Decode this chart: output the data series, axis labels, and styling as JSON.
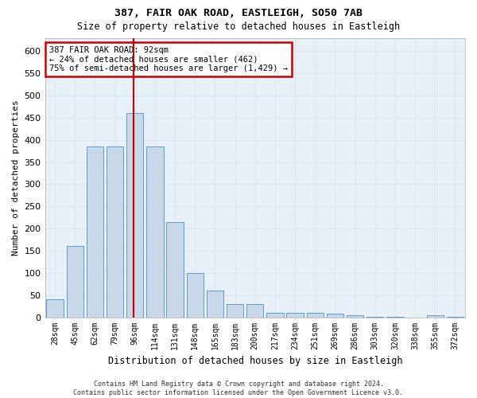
{
  "title1": "387, FAIR OAK ROAD, EASTLEIGH, SO50 7AB",
  "title2": "Size of property relative to detached houses in Eastleigh",
  "xlabel": "Distribution of detached houses by size in Eastleigh",
  "ylabel": "Number of detached properties",
  "categories": [
    "28sqm",
    "45sqm",
    "62sqm",
    "79sqm",
    "96sqm",
    "114sqm",
    "131sqm",
    "148sqm",
    "165sqm",
    "183sqm",
    "200sqm",
    "217sqm",
    "234sqm",
    "251sqm",
    "269sqm",
    "286sqm",
    "303sqm",
    "320sqm",
    "338sqm",
    "355sqm",
    "372sqm"
  ],
  "values": [
    40,
    160,
    385,
    385,
    460,
    385,
    215,
    100,
    60,
    30,
    30,
    10,
    10,
    10,
    8,
    5,
    1,
    1,
    0,
    5,
    1
  ],
  "bar_color": "#c8d8e8",
  "bar_edge_color": "#5b9bd5",
  "grid_color": "#dce6f0",
  "background_color": "#e8f0f8",
  "vline_color": "#cc0000",
  "vline_x": 3.93,
  "annotation_text": "387 FAIR OAK ROAD: 92sqm\n← 24% of detached houses are smaller (462)\n75% of semi-detached houses are larger (1,429) →",
  "annotation_box_facecolor": "#ffffff",
  "annotation_box_edgecolor": "#cc0000",
  "footer1": "Contains HM Land Registry data © Crown copyright and database right 2024.",
  "footer2": "Contains public sector information licensed under the Open Government Licence v3.0.",
  "ylim": [
    0,
    630
  ],
  "yticks": [
    0,
    50,
    100,
    150,
    200,
    250,
    300,
    350,
    400,
    450,
    500,
    550,
    600
  ]
}
